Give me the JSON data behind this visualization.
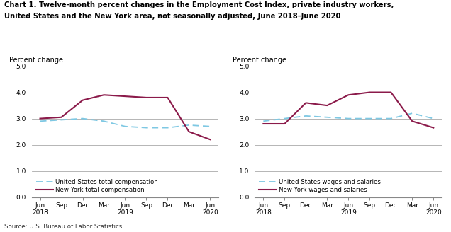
{
  "title_line1": "Chart 1. Twelve-month percent changes in the Employment Cost Index, private industry workers,",
  "title_line2": "United States and the New York area, not seasonally adjusted, June 2018–June 2020",
  "ylabel": "Percent change",
  "source": "Source: U.S. Bureau of Labor Statistics.",
  "x_positions": [
    0,
    1,
    2,
    3,
    4,
    5,
    6,
    7,
    8
  ],
  "ylim": [
    0.0,
    5.0
  ],
  "yticks": [
    0.0,
    1.0,
    2.0,
    3.0,
    4.0,
    5.0
  ],
  "chart1": {
    "us_total": [
      2.9,
      2.95,
      3.0,
      2.9,
      2.7,
      2.65,
      2.65,
      2.75,
      2.7
    ],
    "ny_total": [
      3.0,
      3.05,
      3.7,
      3.9,
      3.85,
      3.8,
      3.8,
      2.5,
      2.2
    ]
  },
  "chart2": {
    "us_wages": [
      2.9,
      3.0,
      3.1,
      3.05,
      3.0,
      3.0,
      3.0,
      3.2,
      3.0
    ],
    "ny_wages": [
      2.8,
      2.8,
      3.6,
      3.5,
      3.9,
      4.0,
      4.0,
      2.9,
      2.65
    ]
  },
  "us_color": "#7ec8e3",
  "ny_color": "#8b1a4a",
  "background_color": "#ffffff",
  "grid_color": "#aaaaaa",
  "legend1_us": "United States total compensation",
  "legend1_ny": "New York total compensation",
  "legend2_us": "United States wages and salaries",
  "legend2_ny": "New York wages and salaries",
  "title_fontsize": 7.2,
  "label_fontsize": 7.0,
  "tick_fontsize": 6.5,
  "legend_fontsize": 6.2,
  "source_fontsize": 6.2
}
